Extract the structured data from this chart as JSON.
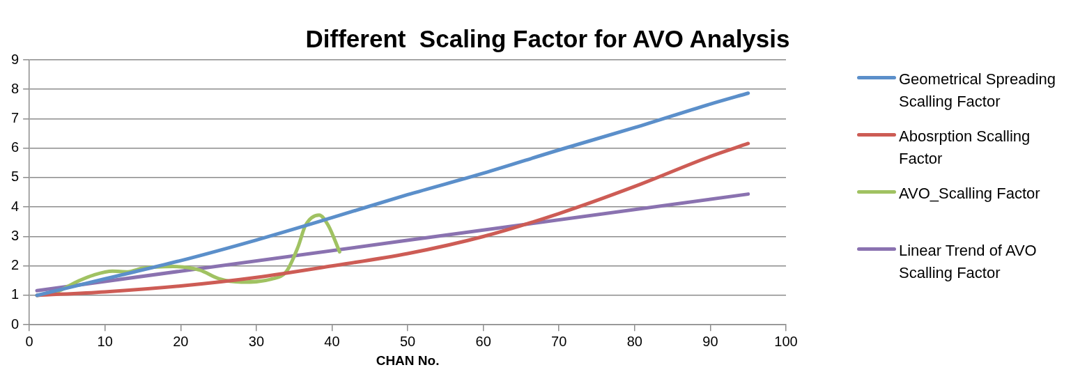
{
  "chart_data": {
    "type": "line",
    "title": "Different  Scaling Factor for AVO Analysis",
    "xlabel": "CHAN No.",
    "xlim": [
      0,
      100
    ],
    "xticks": [
      0,
      10,
      20,
      30,
      40,
      50,
      60,
      70,
      80,
      90,
      100
    ],
    "ylim": [
      0,
      9
    ],
    "yticks": [
      0,
      1,
      2,
      3,
      4,
      5,
      6,
      7,
      8,
      9
    ],
    "grid": "y",
    "legend": "right",
    "marker": "none",
    "line_style": "solid",
    "series": [
      {
        "name": "Geometrical Spreading Scalling Factor",
        "color": "#5b8fca",
        "x": [
          1,
          10,
          20,
          30,
          40,
          50,
          60,
          70,
          80,
          90,
          95
        ],
        "values": [
          1.0,
          1.56,
          2.18,
          2.88,
          3.64,
          4.42,
          5.15,
          5.94,
          6.7,
          7.5,
          7.87
        ]
      },
      {
        "name": "Abosrption Scalling Factor",
        "color": "#cd5c55",
        "x": [
          1,
          10,
          20,
          30,
          40,
          50,
          60,
          70,
          80,
          90,
          95
        ],
        "values": [
          1.0,
          1.12,
          1.32,
          1.61,
          2.0,
          2.42,
          3.0,
          3.78,
          4.7,
          5.72,
          6.16
        ]
      },
      {
        "name": "AVO_Scalling Factor",
        "color": "#a0c262",
        "x": [
          1,
          3.5,
          6.5,
          8.5,
          11,
          13,
          15,
          19,
          22.5,
          25,
          28,
          32,
          34,
          35.5,
          36.5,
          38.3,
          39.5,
          41
        ],
        "values": [
          1.0,
          1.11,
          1.49,
          1.69,
          1.82,
          1.8,
          1.92,
          1.98,
          1.86,
          1.57,
          1.45,
          1.55,
          1.82,
          2.64,
          3.38,
          3.73,
          3.38,
          2.48
        ]
      },
      {
        "name": "Linear Trend of AVO Scalling Factor",
        "color": "#8a72b0",
        "x": [
          1,
          95
        ],
        "values": [
          1.16,
          4.44
        ]
      }
    ]
  }
}
